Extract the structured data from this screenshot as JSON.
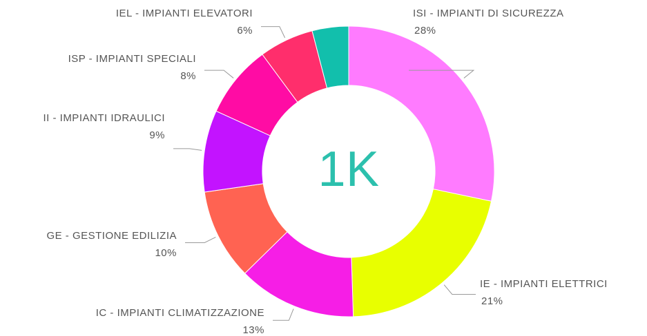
{
  "chart_data": {
    "type": "donut",
    "center_label": "1K",
    "categories": [
      "ISI - IMPIANTI DI SICUREZZA",
      "IE - IMPIANTI ELETTRICI",
      "IC - IMPIANTI CLIMATIZZAZIONE",
      "GE - GESTIONE EDILIZIA",
      "II - IMPIANTI IDRAULICI",
      "ISP - IMPIANTI SPECIALI",
      "IEL - IMPIANTI ELEVATORI",
      null
    ],
    "values": [
      28,
      21,
      13,
      10,
      9,
      8,
      6,
      4
    ],
    "value_labels": [
      "28%",
      "21%",
      "13%",
      "10%",
      "9%",
      "8%",
      "6%",
      null
    ],
    "colors": [
      "#ff7bff",
      "#e8ff00",
      "#f61ee6",
      "#ff6352",
      "#c313ff",
      "#ff0ca4",
      "#ff2e6c",
      "#12bfac"
    ]
  }
}
